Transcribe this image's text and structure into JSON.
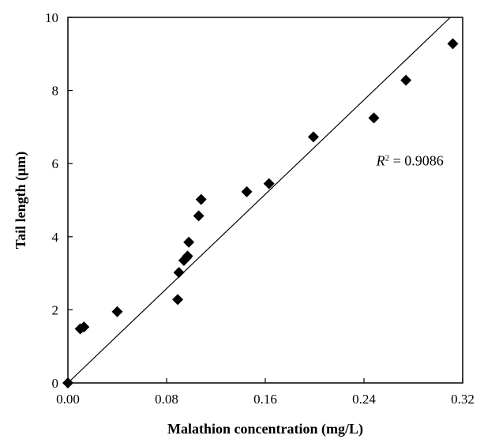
{
  "chart_data": {
    "type": "scatter",
    "xlabel": "Malathion concentration (mg/L)",
    "ylabel": "Tail length (μm)",
    "xlim": [
      0,
      0.32
    ],
    "ylim": [
      0,
      10
    ],
    "x_ticks": [
      "0.00",
      "0.08",
      "0.16",
      "0.24",
      "0.32"
    ],
    "y_ticks": [
      "0",
      "2",
      "4",
      "6",
      "8",
      "10"
    ],
    "grid": false,
    "legend": "none",
    "marker": "diamond",
    "marker_color": "#000000",
    "points": [
      {
        "x": 0.0,
        "y": 0.0
      },
      {
        "x": 0.01,
        "y": 1.48
      },
      {
        "x": 0.013,
        "y": 1.53
      },
      {
        "x": 0.04,
        "y": 1.95
      },
      {
        "x": 0.089,
        "y": 2.28
      },
      {
        "x": 0.09,
        "y": 3.02
      },
      {
        "x": 0.094,
        "y": 3.35
      },
      {
        "x": 0.096,
        "y": 3.42
      },
      {
        "x": 0.097,
        "y": 3.47
      },
      {
        "x": 0.098,
        "y": 3.85
      },
      {
        "x": 0.106,
        "y": 4.57
      },
      {
        "x": 0.108,
        "y": 5.02
      },
      {
        "x": 0.145,
        "y": 5.23
      },
      {
        "x": 0.163,
        "y": 5.45
      },
      {
        "x": 0.199,
        "y": 6.73
      },
      {
        "x": 0.248,
        "y": 7.25
      },
      {
        "x": 0.274,
        "y": 8.28
      },
      {
        "x": 0.312,
        "y": 9.28
      }
    ],
    "trendline": {
      "x": [
        0,
        0.31
      ],
      "y": [
        0,
        10
      ]
    },
    "annotation": {
      "r2_symbol": "R",
      "r2_sup": "2",
      "r2_text": " = 0.9086",
      "x": 0.25,
      "y": 5.95
    }
  }
}
